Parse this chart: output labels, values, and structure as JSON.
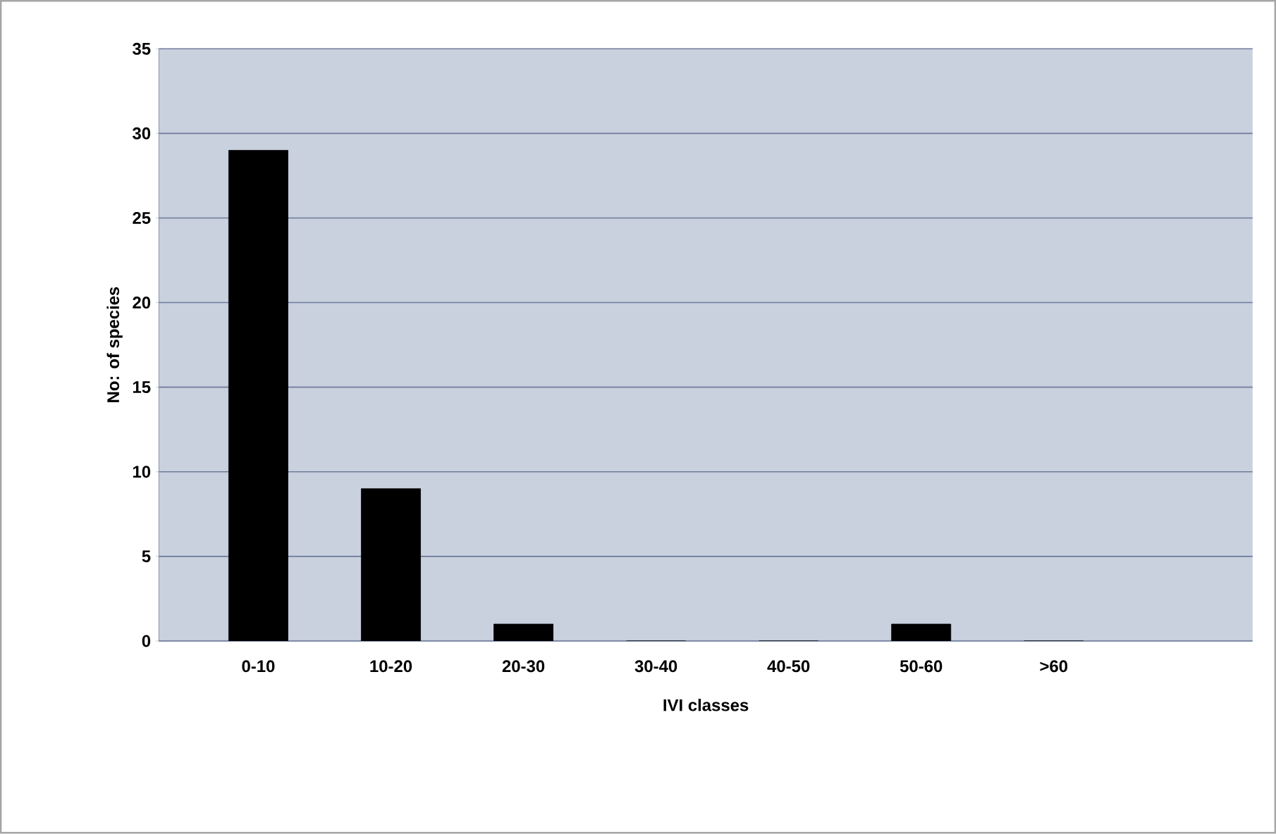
{
  "chart_data": {
    "type": "bar",
    "xlabel": "IVI classes",
    "ylabel": "No: of species",
    "categories": [
      "0-10",
      "10-20",
      "20-30",
      "30-40",
      "40-50",
      "50-60",
      ">60"
    ],
    "values": [
      29,
      9,
      1,
      0,
      0,
      1,
      0
    ],
    "color": "#000000",
    "ylim": [
      0,
      35
    ],
    "yticks": [
      0,
      5,
      10,
      15,
      20,
      25,
      30,
      35
    ],
    "grid": "y"
  }
}
